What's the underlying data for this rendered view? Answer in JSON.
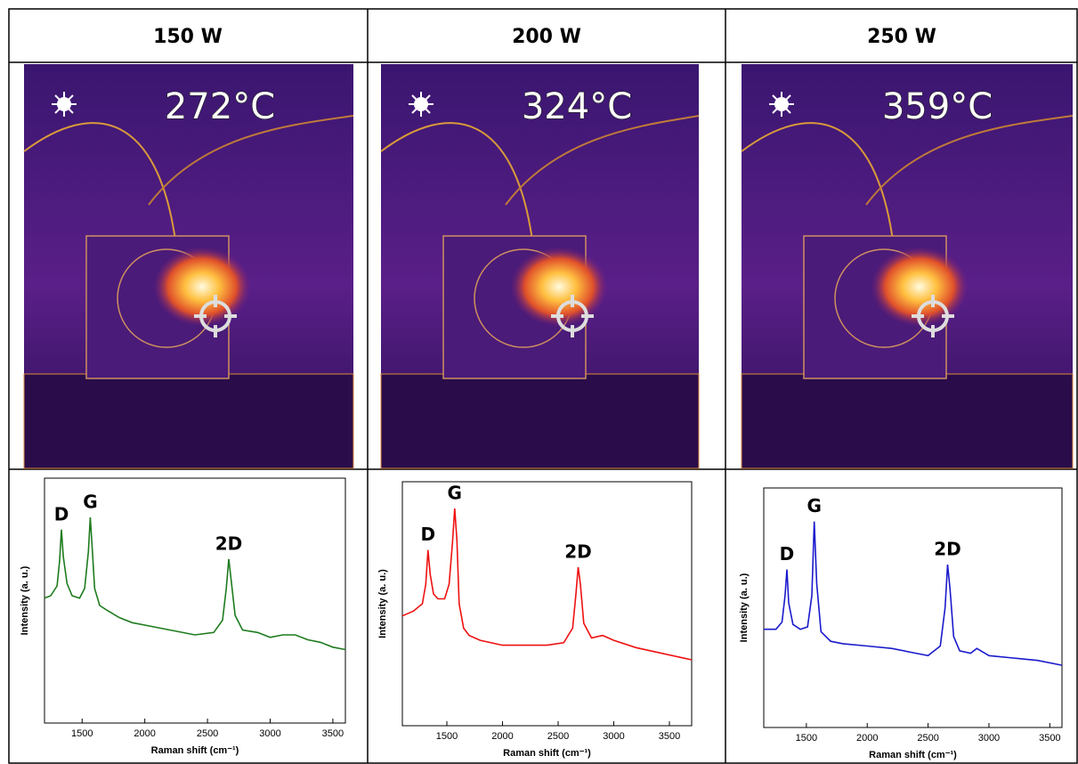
{
  "headers": [
    "150 W",
    "200 W",
    "250 W"
  ],
  "temperatures": [
    "272°C",
    "324°C",
    "359°C"
  ],
  "chart_data": [
    {
      "type": "line",
      "x_label": "Raman shift (cm⁻¹)",
      "y_label": "Intensity (a. u.)",
      "x": [
        1200,
        1250,
        1300,
        1320,
        1335,
        1350,
        1380,
        1420,
        1480,
        1520,
        1550,
        1565,
        1580,
        1600,
        1640,
        1700,
        1800,
        1900,
        2000,
        2200,
        2400,
        2550,
        2620,
        2650,
        2670,
        2690,
        2720,
        2780,
        2900,
        3000,
        3100,
        3200,
        3300,
        3400,
        3500,
        3600
      ],
      "series": [
        {
          "color": "#1e7b1e",
          "values": [
            51,
            52,
            56,
            66,
            79,
            68,
            57,
            52,
            51,
            55,
            70,
            84,
            72,
            55,
            48,
            46,
            43,
            41,
            40,
            38,
            36,
            37,
            42,
            55,
            67,
            58,
            44,
            38,
            37,
            35,
            36,
            36,
            34,
            33,
            31,
            30
          ]
        }
      ],
      "xlim": [
        1200,
        3600
      ],
      "xticks": [
        1500,
        2000,
        2500,
        3000,
        3500
      ],
      "ylim": [
        0,
        100
      ],
      "annotations": [
        "D",
        "G",
        "2D"
      ]
    },
    {
      "type": "line",
      "x_label": "Raman shift (cm⁻¹)",
      "y_label": "Intensity (a. u.)",
      "x": [
        1100,
        1200,
        1280,
        1310,
        1330,
        1350,
        1380,
        1420,
        1480,
        1520,
        1550,
        1570,
        1590,
        1610,
        1650,
        1700,
        1800,
        2000,
        2200,
        2400,
        2550,
        2630,
        2660,
        2680,
        2700,
        2730,
        2800,
        2900,
        3000,
        3200,
        3400,
        3600,
        3700
      ],
      "series": [
        {
          "color": "#ee1111",
          "values": [
            45,
            47,
            50,
            58,
            72,
            62,
            54,
            52,
            52,
            58,
            75,
            89,
            76,
            50,
            40,
            37,
            35,
            33,
            33,
            33,
            34,
            40,
            54,
            65,
            58,
            42,
            36,
            37,
            35,
            32,
            30,
            28,
            27
          ]
        }
      ],
      "xlim": [
        1100,
        3700
      ],
      "xticks": [
        1500,
        2000,
        2500,
        3000,
        3500
      ],
      "ylim": [
        0,
        100
      ],
      "annotations": [
        "D",
        "G",
        "2D"
      ]
    },
    {
      "type": "line",
      "x_label": "Raman shift (cm⁻¹)",
      "y_label": "Intensity (a. u.)",
      "x": [
        1150,
        1250,
        1300,
        1325,
        1340,
        1355,
        1390,
        1450,
        1510,
        1545,
        1565,
        1585,
        1620,
        1700,
        1800,
        2000,
        2200,
        2400,
        2500,
        2600,
        2640,
        2660,
        2680,
        2710,
        2760,
        2850,
        2900,
        3000,
        3200,
        3400,
        3600
      ],
      "series": [
        {
          "color": "#1a1acc",
          "values": [
            41,
            41,
            44,
            55,
            66,
            52,
            43,
            41,
            42,
            55,
            86,
            60,
            40,
            36,
            35,
            34,
            33,
            31,
            30,
            34,
            50,
            68,
            58,
            38,
            32,
            31,
            33,
            30,
            29,
            28,
            26
          ]
        }
      ],
      "xlim": [
        1150,
        3600
      ],
      "xticks": [
        1500,
        2000,
        2500,
        3000,
        3500
      ],
      "ylim": [
        0,
        100
      ],
      "annotations": [
        "D",
        "G",
        "2D"
      ]
    }
  ]
}
